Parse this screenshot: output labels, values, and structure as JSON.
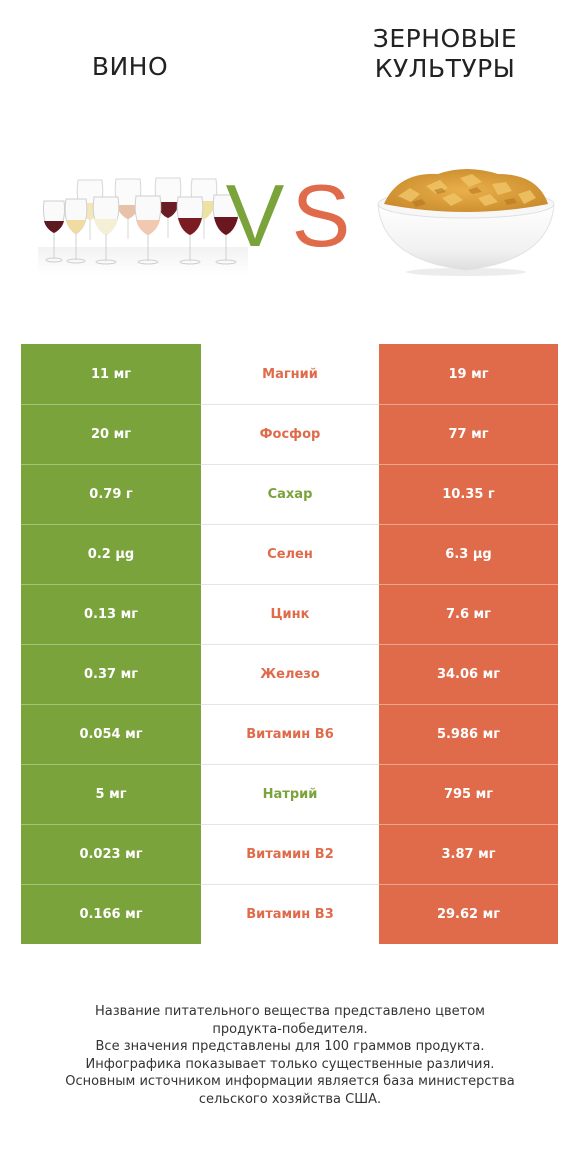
{
  "titles": {
    "left": "ВИНО",
    "right_line1": "ЗЕРНОВЫЕ",
    "right_line2": "КУЛЬТУРЫ"
  },
  "vs": {
    "v": "V",
    "s": "S"
  },
  "colors": {
    "left": "#7aa33b",
    "right": "#e06b4b",
    "green_text": "#7aa33b",
    "red_text": "#e06b4b"
  },
  "chart_data": {
    "type": "table",
    "series": [
      {
        "name": "ВИНО",
        "color": "#7aa33b"
      },
      {
        "name": "ЗЕРНОВЫЕ КУЛЬТУРЫ",
        "color": "#e06b4b"
      }
    ],
    "rows": [
      {
        "nutrient": "Магний",
        "left": "11 мг",
        "right": "19 мг",
        "winner": "right"
      },
      {
        "nutrient": "Фосфор",
        "left": "20 мг",
        "right": "77 мг",
        "winner": "right"
      },
      {
        "nutrient": "Сахар",
        "left": "0.79 г",
        "right": "10.35 г",
        "winner": "left"
      },
      {
        "nutrient": "Селен",
        "left": "0.2 µg",
        "right": "6.3 µg",
        "winner": "right"
      },
      {
        "nutrient": "Цинк",
        "left": "0.13 мг",
        "right": "7.6 мг",
        "winner": "right"
      },
      {
        "nutrient": "Железо",
        "left": "0.37 мг",
        "right": "34.06 мг",
        "winner": "right"
      },
      {
        "nutrient": "Витамин B6",
        "left": "0.054 мг",
        "right": "5.986 мг",
        "winner": "right"
      },
      {
        "nutrient": "Натрий",
        "left": "5 мг",
        "right": "795 мг",
        "winner": "left"
      },
      {
        "nutrient": "Витамин B2",
        "left": "0.023 мг",
        "right": "3.87 мг",
        "winner": "right"
      },
      {
        "nutrient": "Витамин B3",
        "left": "0.166 мг",
        "right": "29.62 мг",
        "winner": "right"
      }
    ]
  },
  "footnote": [
    "Название питательного вещества представлено цветом",
    "продукта-победителя.",
    "Все значения представлены для 100 граммов продукта.",
    "Инфографика показывает только существенные различия.",
    "Основным источником информации является база министерства",
    "сельского хозяйства США."
  ]
}
